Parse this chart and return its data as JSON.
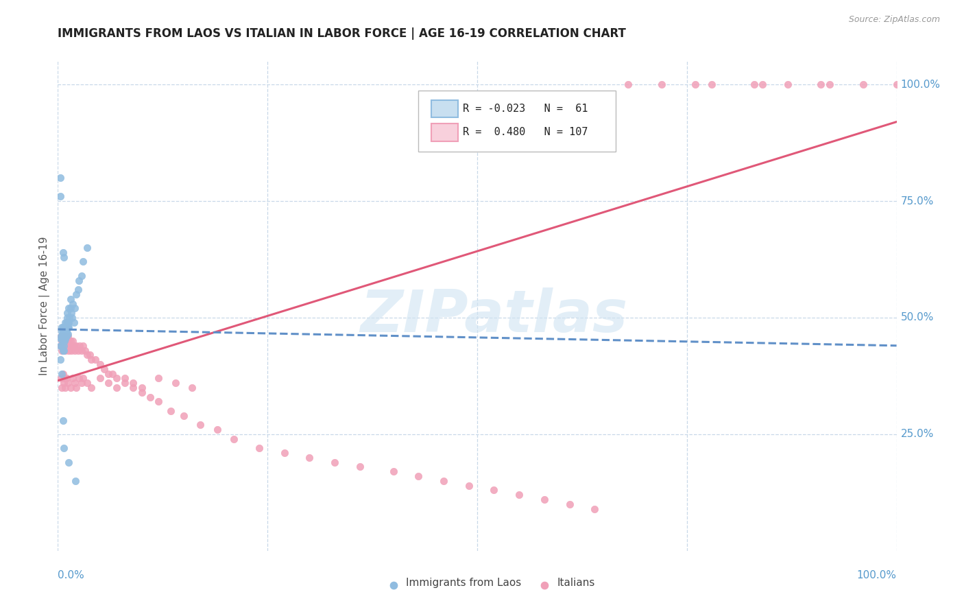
{
  "title": "IMMIGRANTS FROM LAOS VS ITALIAN IN LABOR FORCE | AGE 16-19 CORRELATION CHART",
  "source": "Source: ZipAtlas.com",
  "ylabel": "In Labor Force | Age 16-19",
  "laos_color": "#90bce0",
  "laos_line_color": "#6090c8",
  "italian_color": "#f0a0b8",
  "italian_line_color": "#e05878",
  "grid_color": "#c8d8e8",
  "right_label_color": "#5599cc",
  "watermark_color": "#d0e4f2",
  "watermark_text": "ZIPatlas",
  "legend_R_laos": "-0.023",
  "legend_N_laos": " 61",
  "legend_R_italian": " 0.480",
  "legend_N_italian": "107",
  "laos_x": [
    0.003,
    0.003,
    0.004,
    0.004,
    0.005,
    0.005,
    0.005,
    0.005,
    0.005,
    0.006,
    0.006,
    0.006,
    0.006,
    0.007,
    0.007,
    0.007,
    0.007,
    0.008,
    0.008,
    0.008,
    0.008,
    0.009,
    0.009,
    0.009,
    0.009,
    0.01,
    0.01,
    0.01,
    0.01,
    0.011,
    0.011,
    0.011,
    0.012,
    0.012,
    0.012,
    0.013,
    0.013,
    0.013,
    0.014,
    0.015,
    0.015,
    0.016,
    0.017,
    0.018,
    0.019,
    0.02,
    0.022,
    0.024,
    0.025,
    0.028,
    0.03,
    0.035,
    0.003,
    0.003,
    0.006,
    0.007,
    0.013,
    0.021,
    0.005,
    0.006,
    0.007
  ],
  "laos_y": [
    0.44,
    0.41,
    0.455,
    0.46,
    0.47,
    0.48,
    0.46,
    0.455,
    0.44,
    0.43,
    0.465,
    0.47,
    0.48,
    0.46,
    0.455,
    0.44,
    0.43,
    0.465,
    0.47,
    0.48,
    0.45,
    0.48,
    0.49,
    0.46,
    0.455,
    0.49,
    0.47,
    0.465,
    0.46,
    0.51,
    0.5,
    0.48,
    0.49,
    0.48,
    0.465,
    0.52,
    0.49,
    0.48,
    0.5,
    0.54,
    0.52,
    0.51,
    0.5,
    0.53,
    0.49,
    0.52,
    0.55,
    0.56,
    0.58,
    0.59,
    0.62,
    0.65,
    0.8,
    0.76,
    0.64,
    0.63,
    0.19,
    0.15,
    0.38,
    0.28,
    0.22
  ],
  "italian_x": [
    0.004,
    0.004,
    0.005,
    0.005,
    0.005,
    0.005,
    0.006,
    0.006,
    0.006,
    0.007,
    0.007,
    0.007,
    0.008,
    0.008,
    0.009,
    0.009,
    0.01,
    0.01,
    0.011,
    0.011,
    0.012,
    0.012,
    0.013,
    0.013,
    0.014,
    0.015,
    0.016,
    0.017,
    0.018,
    0.019,
    0.02,
    0.022,
    0.024,
    0.026,
    0.028,
    0.03,
    0.032,
    0.035,
    0.038,
    0.04,
    0.045,
    0.05,
    0.055,
    0.06,
    0.065,
    0.07,
    0.08,
    0.09,
    0.1,
    0.11,
    0.12,
    0.135,
    0.15,
    0.17,
    0.19,
    0.21,
    0.24,
    0.27,
    0.3,
    0.33,
    0.36,
    0.4,
    0.43,
    0.46,
    0.49,
    0.52,
    0.55,
    0.58,
    0.61,
    0.64,
    0.004,
    0.005,
    0.006,
    0.007,
    0.008,
    0.009,
    0.01,
    0.012,
    0.015,
    0.018,
    0.02,
    0.022,
    0.025,
    0.028,
    0.03,
    0.035,
    0.04,
    0.05,
    0.06,
    0.07,
    0.08,
    0.09,
    0.1,
    0.12,
    0.14,
    0.16,
    0.68,
    0.72,
    0.76,
    0.83,
    0.87,
    0.92,
    0.96,
    1.0,
    0.78,
    0.84,
    0.91
  ],
  "italian_y": [
    0.44,
    0.46,
    0.45,
    0.43,
    0.46,
    0.44,
    0.45,
    0.44,
    0.46,
    0.45,
    0.44,
    0.46,
    0.44,
    0.46,
    0.45,
    0.43,
    0.44,
    0.46,
    0.45,
    0.44,
    0.44,
    0.46,
    0.43,
    0.45,
    0.44,
    0.45,
    0.43,
    0.44,
    0.45,
    0.44,
    0.43,
    0.44,
    0.43,
    0.44,
    0.43,
    0.44,
    0.43,
    0.42,
    0.42,
    0.41,
    0.41,
    0.4,
    0.39,
    0.38,
    0.38,
    0.37,
    0.36,
    0.35,
    0.34,
    0.33,
    0.32,
    0.3,
    0.29,
    0.27,
    0.26,
    0.24,
    0.22,
    0.21,
    0.2,
    0.19,
    0.18,
    0.17,
    0.16,
    0.15,
    0.14,
    0.13,
    0.12,
    0.11,
    0.1,
    0.09,
    0.37,
    0.35,
    0.38,
    0.36,
    0.37,
    0.35,
    0.37,
    0.36,
    0.35,
    0.37,
    0.36,
    0.35,
    0.37,
    0.36,
    0.37,
    0.36,
    0.35,
    0.37,
    0.36,
    0.35,
    0.37,
    0.36,
    0.35,
    0.37,
    0.36,
    0.35,
    1.0,
    1.0,
    1.0,
    1.0,
    1.0,
    1.0,
    1.0,
    1.0,
    1.0,
    1.0,
    1.0
  ],
  "xlim": [
    0.0,
    1.0
  ],
  "ylim": [
    0.0,
    1.05
  ],
  "laos_trend_x0": 0.0,
  "laos_trend_x1": 1.0,
  "laos_trend_y0": 0.475,
  "laos_trend_y1": 0.44,
  "italian_trend_x0": 0.0,
  "italian_trend_x1": 1.0,
  "italian_trend_y0": 0.365,
  "italian_trend_y1": 0.92
}
